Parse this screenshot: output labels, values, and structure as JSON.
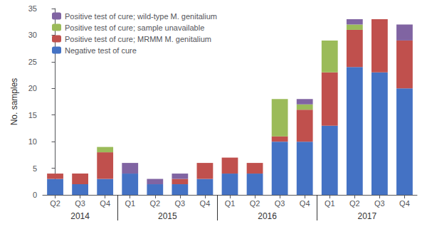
{
  "chart_data": {
    "type": "bar",
    "stacked": true,
    "categories": [
      "Q2",
      "Q3",
      "Q4",
      "Q1",
      "Q2",
      "Q3",
      "Q4",
      "Q1",
      "Q2",
      "Q3",
      "Q4",
      "Q1",
      "Q2",
      "Q3",
      "Q4"
    ],
    "years": [
      "2014",
      "2014",
      "2014",
      "2015",
      "2015",
      "2015",
      "2015",
      "2016",
      "2016",
      "2016",
      "2016",
      "2017",
      "2017",
      "2017",
      "2017"
    ],
    "series": [
      {
        "name": "Negative test of cure",
        "color": "#4472C4",
        "values": [
          3,
          2,
          3,
          4,
          2,
          2,
          3,
          4,
          4,
          10,
          10,
          13,
          24,
          23,
          20
        ]
      },
      {
        "name": "Positive test of cure; MRMM M. genitalium",
        "color": "#C0504D",
        "values": [
          1,
          2,
          5,
          0,
          0,
          1,
          3,
          3,
          2,
          1,
          6,
          10,
          7,
          10,
          9
        ]
      },
      {
        "name": "Positive test of cure; sample unavailable",
        "color": "#9BBB59",
        "values": [
          0,
          0,
          1,
          0,
          0,
          0,
          0,
          0,
          0,
          7,
          1,
          6,
          1,
          0,
          0
        ]
      },
      {
        "name": "Positive test of cure; wild-type M. genitalium",
        "color": "#8064A2",
        "values": [
          0,
          0,
          0,
          2,
          1,
          1,
          0,
          0,
          0,
          0,
          1,
          0,
          1,
          0,
          3
        ]
      }
    ],
    "ylabel": "No. samples",
    "ylim": [
      0,
      35
    ],
    "yticks": [
      0,
      5,
      10,
      15,
      20,
      25,
      30,
      35
    ],
    "grid": false,
    "legend": "upper left"
  }
}
